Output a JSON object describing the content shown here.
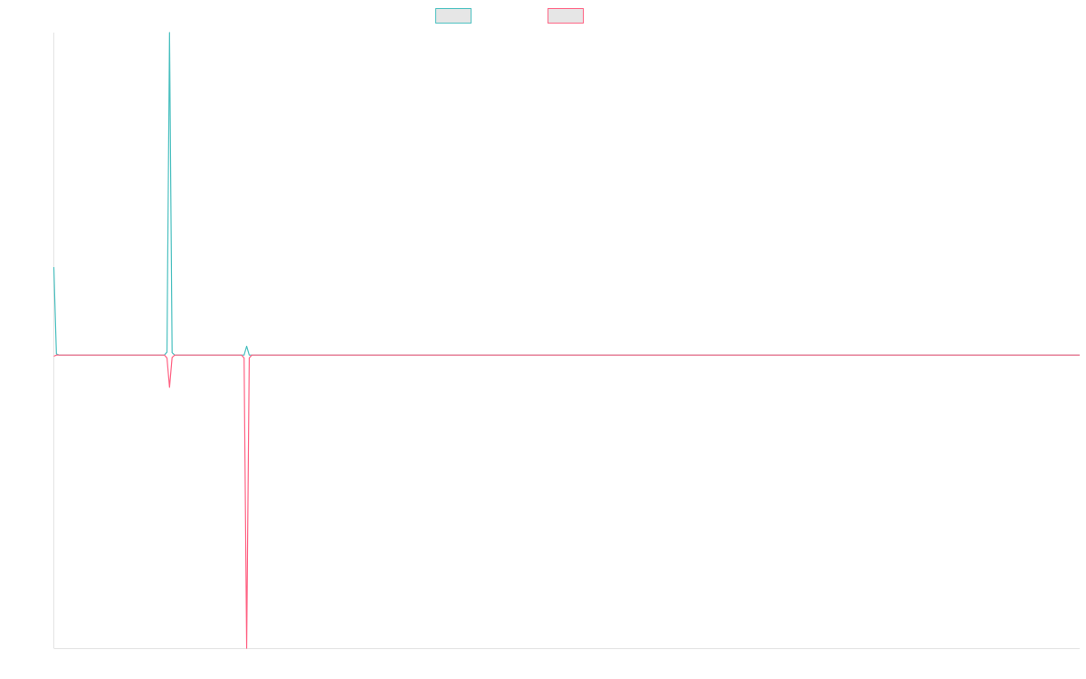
{
  "chart_data": {
    "type": "line",
    "title": "",
    "xlabel": "",
    "ylabel": "",
    "grid": false,
    "legend_position": "top-center",
    "x": [
      0,
      1,
      2,
      3,
      4,
      5,
      6,
      7,
      8,
      9,
      10,
      11,
      12,
      13,
      14,
      15,
      16,
      17,
      18,
      19,
      20,
      21,
      22,
      23,
      24,
      25,
      26,
      27,
      28,
      29,
      30,
      31,
      32,
      33,
      34,
      35,
      36,
      37,
      38,
      39,
      40,
      41,
      42,
      43,
      44,
      45,
      46,
      47,
      48,
      49,
      50,
      51,
      52,
      53,
      54,
      55,
      56,
      57,
      58,
      59,
      60,
      61,
      62,
      63,
      64,
      65,
      66,
      67,
      68,
      69,
      70,
      71,
      72,
      73,
      74,
      75,
      76,
      77,
      78,
      79,
      80,
      81,
      82,
      83,
      84,
      85,
      86,
      87,
      88,
      89,
      90,
      91,
      92,
      93,
      94,
      95,
      96,
      97,
      98,
      99,
      100,
      101,
      102,
      103,
      104,
      105,
      106,
      107,
      108,
      109,
      110,
      111,
      112,
      113,
      114,
      115,
      116,
      117,
      118,
      119,
      120,
      121,
      122,
      123,
      124,
      125,
      126,
      127,
      128,
      129,
      130,
      131,
      132,
      133,
      134,
      135,
      136,
      137,
      138,
      139,
      140,
      141,
      142,
      143,
      144,
      145,
      146,
      147,
      148,
      149,
      150,
      151,
      152,
      153,
      154,
      155,
      156,
      157,
      158,
      159,
      160,
      161,
      162,
      163,
      164,
      165,
      166,
      167,
      168,
      169,
      170,
      171,
      172,
      173,
      174,
      175,
      176,
      177,
      178,
      179,
      180,
      181,
      182,
      183,
      184,
      185,
      186,
      187,
      188,
      189,
      190,
      191,
      192,
      193,
      194,
      195,
      196,
      197,
      198,
      199,
      200,
      201,
      202,
      203,
      204,
      205,
      206,
      207,
      208,
      209,
      210,
      211,
      212,
      213,
      214,
      215,
      216,
      217,
      218,
      219,
      220,
      221,
      222,
      223,
      224,
      225,
      226,
      227,
      228,
      229,
      230,
      231,
      232,
      233,
      234,
      235,
      236,
      237,
      238,
      239,
      240,
      241,
      242,
      243,
      244,
      245,
      246,
      247,
      248,
      249,
      250,
      251,
      252,
      253,
      254,
      255,
      256,
      257,
      258,
      259,
      260,
      261,
      262,
      263,
      264,
      265,
      266,
      267,
      268,
      269,
      270,
      271,
      272,
      273,
      274,
      275,
      276,
      277,
      278,
      279,
      280,
      281,
      282,
      283,
      284,
      285,
      286,
      287,
      288,
      289,
      290,
      291,
      292,
      293,
      294,
      295,
      296,
      297,
      298,
      299,
      300,
      301,
      302,
      303,
      304,
      305,
      306,
      307,
      308,
      309,
      310,
      311,
      312,
      313,
      314,
      315,
      316,
      317,
      318,
      319,
      320,
      321,
      322,
      323,
      324,
      325,
      326,
      327,
      328,
      329,
      330,
      331,
      332,
      333,
      334,
      335,
      336,
      337,
      338,
      339,
      340,
      341,
      342,
      343,
      344,
      345,
      346,
      347,
      348,
      349,
      350,
      351,
      352,
      353,
      354,
      355,
      356,
      357,
      358,
      359,
      360,
      361,
      362,
      363,
      364,
      365,
      366,
      367,
      368,
      369,
      370,
      371,
      372,
      373,
      374,
      375,
      376,
      377,
      378,
      379,
      380,
      381,
      382,
      383,
      384,
      385,
      386,
      387,
      388,
      389,
      390,
      391,
      392,
      393,
      394,
      395,
      396,
      397,
      398,
      399
    ],
    "xlim": [
      0,
      399
    ],
    "ylim": [
      -1.0,
      1.1
    ],
    "series": [
      {
        "color": "#4bc0c0",
        "fill": "#e6e6e6",
        "nonzero": {
          "0": 0.3,
          "1": 0.004,
          "44": 0.01,
          "45": 1.1,
          "46": 0.008,
          "75": 0.03
        },
        "default": 0.0
      },
      {
        "color": "#ff6384",
        "fill": "#e6e6e6",
        "nonzero": {
          "0": -0.004,
          "44": -0.01,
          "45": -0.11,
          "46": -0.008,
          "74": -0.01,
          "75": -1.0,
          "76": -0.01
        },
        "default": 0.0
      }
    ]
  }
}
